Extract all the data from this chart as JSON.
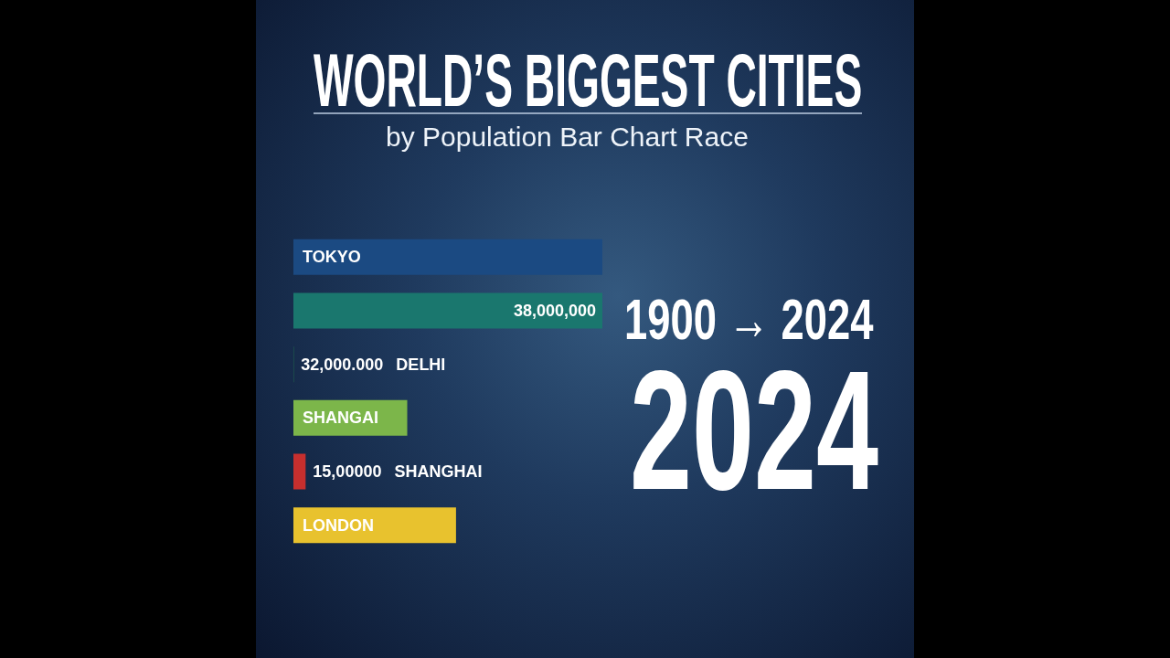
{
  "chart_data": {
    "type": "bar",
    "orientation": "horizontal",
    "tick_labels": "y",
    "title": "WORLD’S BIGGEST CITIES",
    "subtitle": "by Population Bar Chart Race",
    "categories": [
      "TOKYO",
      null,
      "DELHI",
      "SHANGAI",
      "SHANGHAI",
      "LONDON"
    ],
    "values": [
      38000000,
      38000000,
      32000,
      14000000,
      1500000,
      20000000
    ],
    "colors": [
      "#1b4a82",
      "#1a776e",
      "#2a9650",
      "#7cb64a",
      "#c62f2e",
      "#e8c22e"
    ],
    "value_labels": [
      null,
      "38,000,000",
      "32,000.000",
      null,
      "15,00000",
      null
    ],
    "annotations": [
      "1900 → 2024",
      "2024"
    ]
  }
}
